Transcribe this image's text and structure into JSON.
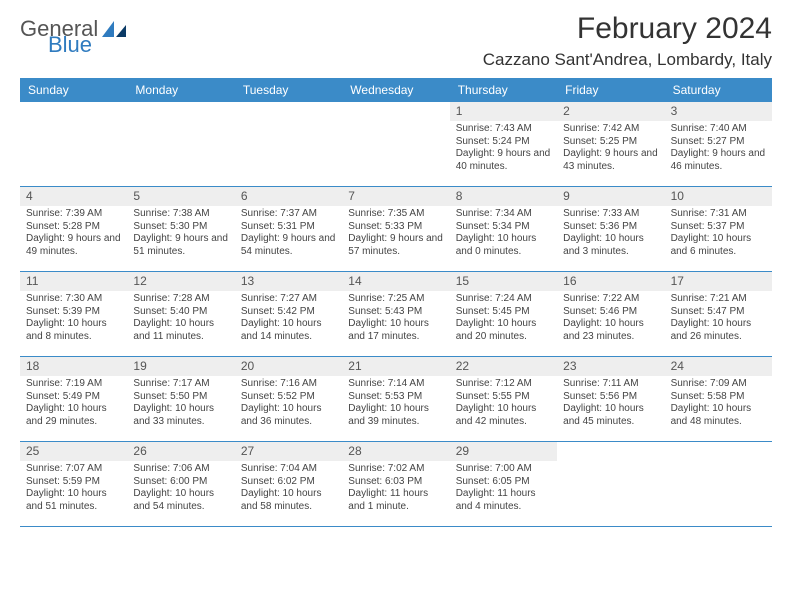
{
  "logo": {
    "text1": "General",
    "text2": "Blue"
  },
  "title": "February 2024",
  "location": "Cazzano Sant'Andrea, Lombardy, Italy",
  "colors": {
    "header_bg": "#3b8bc8",
    "header_text": "#ffffff",
    "daynum_bg": "#eeeeee",
    "text": "#444444",
    "rule": "#3b8bc8"
  },
  "day_names": [
    "Sunday",
    "Monday",
    "Tuesday",
    "Wednesday",
    "Thursday",
    "Friday",
    "Saturday"
  ],
  "weeks": [
    [
      null,
      null,
      null,
      null,
      {
        "n": "1",
        "sr": "Sunrise: 7:43 AM",
        "ss": "Sunset: 5:24 PM",
        "dl": "Daylight: 9 hours and 40 minutes."
      },
      {
        "n": "2",
        "sr": "Sunrise: 7:42 AM",
        "ss": "Sunset: 5:25 PM",
        "dl": "Daylight: 9 hours and 43 minutes."
      },
      {
        "n": "3",
        "sr": "Sunrise: 7:40 AM",
        "ss": "Sunset: 5:27 PM",
        "dl": "Daylight: 9 hours and 46 minutes."
      }
    ],
    [
      {
        "n": "4",
        "sr": "Sunrise: 7:39 AM",
        "ss": "Sunset: 5:28 PM",
        "dl": "Daylight: 9 hours and 49 minutes."
      },
      {
        "n": "5",
        "sr": "Sunrise: 7:38 AM",
        "ss": "Sunset: 5:30 PM",
        "dl": "Daylight: 9 hours and 51 minutes."
      },
      {
        "n": "6",
        "sr": "Sunrise: 7:37 AM",
        "ss": "Sunset: 5:31 PM",
        "dl": "Daylight: 9 hours and 54 minutes."
      },
      {
        "n": "7",
        "sr": "Sunrise: 7:35 AM",
        "ss": "Sunset: 5:33 PM",
        "dl": "Daylight: 9 hours and 57 minutes."
      },
      {
        "n": "8",
        "sr": "Sunrise: 7:34 AM",
        "ss": "Sunset: 5:34 PM",
        "dl": "Daylight: 10 hours and 0 minutes."
      },
      {
        "n": "9",
        "sr": "Sunrise: 7:33 AM",
        "ss": "Sunset: 5:36 PM",
        "dl": "Daylight: 10 hours and 3 minutes."
      },
      {
        "n": "10",
        "sr": "Sunrise: 7:31 AM",
        "ss": "Sunset: 5:37 PM",
        "dl": "Daylight: 10 hours and 6 minutes."
      }
    ],
    [
      {
        "n": "11",
        "sr": "Sunrise: 7:30 AM",
        "ss": "Sunset: 5:39 PM",
        "dl": "Daylight: 10 hours and 8 minutes."
      },
      {
        "n": "12",
        "sr": "Sunrise: 7:28 AM",
        "ss": "Sunset: 5:40 PM",
        "dl": "Daylight: 10 hours and 11 minutes."
      },
      {
        "n": "13",
        "sr": "Sunrise: 7:27 AM",
        "ss": "Sunset: 5:42 PM",
        "dl": "Daylight: 10 hours and 14 minutes."
      },
      {
        "n": "14",
        "sr": "Sunrise: 7:25 AM",
        "ss": "Sunset: 5:43 PM",
        "dl": "Daylight: 10 hours and 17 minutes."
      },
      {
        "n": "15",
        "sr": "Sunrise: 7:24 AM",
        "ss": "Sunset: 5:45 PM",
        "dl": "Daylight: 10 hours and 20 minutes."
      },
      {
        "n": "16",
        "sr": "Sunrise: 7:22 AM",
        "ss": "Sunset: 5:46 PM",
        "dl": "Daylight: 10 hours and 23 minutes."
      },
      {
        "n": "17",
        "sr": "Sunrise: 7:21 AM",
        "ss": "Sunset: 5:47 PM",
        "dl": "Daylight: 10 hours and 26 minutes."
      }
    ],
    [
      {
        "n": "18",
        "sr": "Sunrise: 7:19 AM",
        "ss": "Sunset: 5:49 PM",
        "dl": "Daylight: 10 hours and 29 minutes."
      },
      {
        "n": "19",
        "sr": "Sunrise: 7:17 AM",
        "ss": "Sunset: 5:50 PM",
        "dl": "Daylight: 10 hours and 33 minutes."
      },
      {
        "n": "20",
        "sr": "Sunrise: 7:16 AM",
        "ss": "Sunset: 5:52 PM",
        "dl": "Daylight: 10 hours and 36 minutes."
      },
      {
        "n": "21",
        "sr": "Sunrise: 7:14 AM",
        "ss": "Sunset: 5:53 PM",
        "dl": "Daylight: 10 hours and 39 minutes."
      },
      {
        "n": "22",
        "sr": "Sunrise: 7:12 AM",
        "ss": "Sunset: 5:55 PM",
        "dl": "Daylight: 10 hours and 42 minutes."
      },
      {
        "n": "23",
        "sr": "Sunrise: 7:11 AM",
        "ss": "Sunset: 5:56 PM",
        "dl": "Daylight: 10 hours and 45 minutes."
      },
      {
        "n": "24",
        "sr": "Sunrise: 7:09 AM",
        "ss": "Sunset: 5:58 PM",
        "dl": "Daylight: 10 hours and 48 minutes."
      }
    ],
    [
      {
        "n": "25",
        "sr": "Sunrise: 7:07 AM",
        "ss": "Sunset: 5:59 PM",
        "dl": "Daylight: 10 hours and 51 minutes."
      },
      {
        "n": "26",
        "sr": "Sunrise: 7:06 AM",
        "ss": "Sunset: 6:00 PM",
        "dl": "Daylight: 10 hours and 54 minutes."
      },
      {
        "n": "27",
        "sr": "Sunrise: 7:04 AM",
        "ss": "Sunset: 6:02 PM",
        "dl": "Daylight: 10 hours and 58 minutes."
      },
      {
        "n": "28",
        "sr": "Sunrise: 7:02 AM",
        "ss": "Sunset: 6:03 PM",
        "dl": "Daylight: 11 hours and 1 minute."
      },
      {
        "n": "29",
        "sr": "Sunrise: 7:00 AM",
        "ss": "Sunset: 6:05 PM",
        "dl": "Daylight: 11 hours and 4 minutes."
      },
      null,
      null
    ]
  ]
}
